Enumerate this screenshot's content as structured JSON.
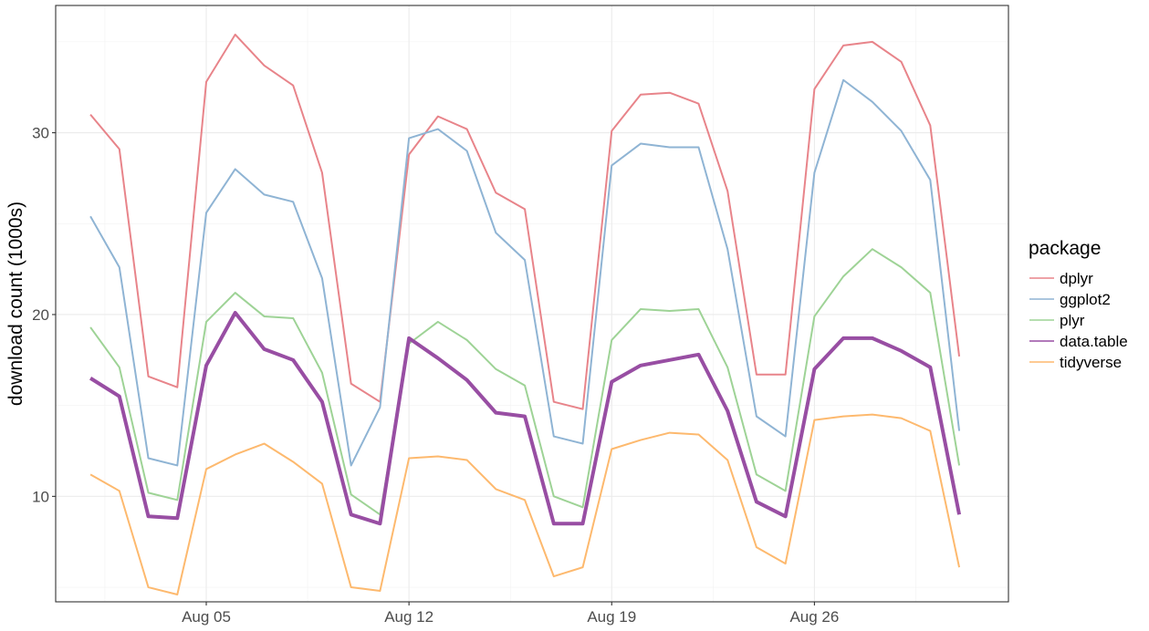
{
  "chart_data": {
    "type": "line",
    "xlabel": "",
    "ylabel": "download count (1000s)",
    "x_ticks": [
      "Aug 05",
      "Aug 12",
      "Aug 19",
      "Aug 26"
    ],
    "x_tick_days": [
      5,
      12,
      19,
      26
    ],
    "y_ticks": [
      10,
      20,
      30
    ],
    "xlim_days": [
      -0.2,
      32.7
    ],
    "ylim": [
      4.2,
      37.0
    ],
    "grid": true,
    "legend_title": "package",
    "legend_position": "right",
    "x_days": [
      1,
      2,
      3,
      4,
      5,
      6,
      7,
      8,
      9,
      10,
      11,
      12,
      13,
      14,
      15,
      16,
      17,
      18,
      19,
      20,
      21,
      22,
      23,
      24,
      25,
      26,
      27,
      28,
      29,
      30,
      31
    ],
    "series": [
      {
        "name": "dplyr",
        "color": "#E8848A",
        "width": 2,
        "values": [
          31.0,
          29.1,
          16.6,
          16.0,
          32.8,
          35.4,
          33.7,
          32.6,
          27.8,
          16.2,
          15.2,
          28.8,
          30.9,
          30.2,
          26.7,
          25.8,
          15.2,
          14.8,
          30.1,
          32.1,
          32.2,
          31.6,
          26.8,
          16.7,
          16.7,
          32.4,
          34.8,
          35.0,
          33.9,
          30.4,
          17.7
        ]
      },
      {
        "name": "ggplot2",
        "color": "#8FB4D4",
        "width": 2,
        "values": [
          25.4,
          22.6,
          12.1,
          11.7,
          25.6,
          28.0,
          26.6,
          26.2,
          22.0,
          11.7,
          14.9,
          29.7,
          30.2,
          29.0,
          24.5,
          23.0,
          13.3,
          12.9,
          28.2,
          29.4,
          29.2,
          29.2,
          23.6,
          14.4,
          13.3,
          27.8,
          32.9,
          31.7,
          30.1,
          27.4,
          13.6
        ]
      },
      {
        "name": "plyr",
        "color": "#9ED396",
        "width": 2,
        "values": [
          19.3,
          17.1,
          10.2,
          9.8,
          19.6,
          21.2,
          19.9,
          19.8,
          16.8,
          10.1,
          9.0,
          18.4,
          19.6,
          18.6,
          17.0,
          16.1,
          10.0,
          9.4,
          18.6,
          20.3,
          20.2,
          20.3,
          17.1,
          11.2,
          10.3,
          19.9,
          22.1,
          23.6,
          22.6,
          21.2,
          11.7
        ]
      },
      {
        "name": "data.table",
        "color": "#984EA3",
        "width": 4,
        "values": [
          16.5,
          15.5,
          8.9,
          8.8,
          17.2,
          20.1,
          18.1,
          17.5,
          15.2,
          9.0,
          8.5,
          18.7,
          17.6,
          16.4,
          14.6,
          14.4,
          8.5,
          8.5,
          16.3,
          17.2,
          17.5,
          17.8,
          14.7,
          9.7,
          8.9,
          17.0,
          18.7,
          18.7,
          18.0,
          17.1,
          9.0
        ]
      },
      {
        "name": "tidyverse",
        "color": "#FDB96E",
        "width": 2,
        "values": [
          11.2,
          10.3,
          5.0,
          4.6,
          11.5,
          12.3,
          12.9,
          11.9,
          10.7,
          5.0,
          4.8,
          12.1,
          12.2,
          12.0,
          10.4,
          9.8,
          5.6,
          6.1,
          12.6,
          13.1,
          13.5,
          13.4,
          12.0,
          7.2,
          6.3,
          14.2,
          14.4,
          14.5,
          14.3,
          13.6,
          6.1
        ]
      }
    ]
  }
}
